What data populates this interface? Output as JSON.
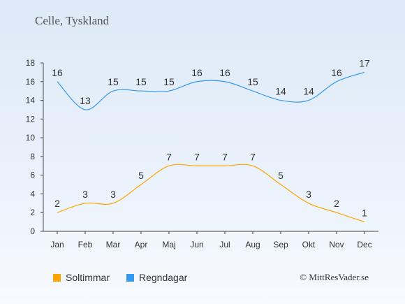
{
  "title": "Celle, Tyskland",
  "credit": "© MittResVader.se",
  "chart_data": {
    "type": "line",
    "title": "Celle, Tyskland",
    "categories": [
      "Jan",
      "Feb",
      "Mar",
      "Apr",
      "Maj",
      "Jun",
      "Jul",
      "Aug",
      "Sep",
      "Okt",
      "Nov",
      "Dec"
    ],
    "ylim": [
      0,
      18
    ],
    "yticks": [
      0,
      2,
      4,
      6,
      8,
      10,
      12,
      14,
      16,
      18
    ],
    "grid": false,
    "legend_position": "bottom-left",
    "series": [
      {
        "name": "Soltimmar",
        "color": "#ffa500",
        "values": [
          2,
          3,
          3,
          5,
          7,
          7,
          7,
          7,
          5,
          3,
          2,
          1
        ]
      },
      {
        "name": "Regndagar",
        "color": "#3399ee",
        "values": [
          16,
          13,
          15,
          15,
          15,
          16,
          16,
          15,
          14,
          14,
          16,
          17
        ]
      }
    ]
  }
}
